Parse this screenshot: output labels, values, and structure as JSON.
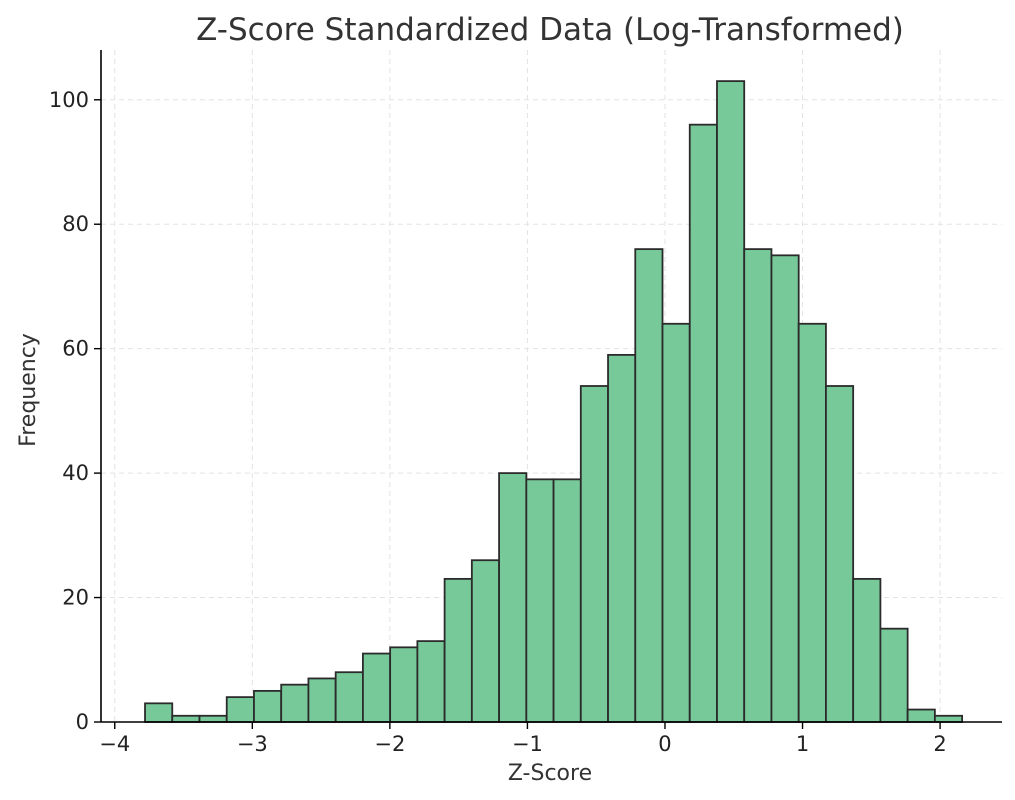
{
  "chart_data": {
    "type": "bar",
    "title": "Z-Score Standardized Data (Log-Transformed)",
    "xlabel": "Z-Score",
    "ylabel": "Frequency",
    "xlim": [
      -4.1,
      2.45
    ],
    "ylim": [
      0,
      108
    ],
    "x_ticks": [
      -4,
      -3,
      -2,
      -1,
      0,
      1,
      2
    ],
    "x_tick_labels": [
      "−4",
      "−3",
      "−2",
      "−1",
      "0",
      "1",
      "2"
    ],
    "y_ticks": [
      0,
      20,
      40,
      60,
      80,
      100
    ],
    "y_tick_labels": [
      "0",
      "20",
      "40",
      "60",
      "80",
      "100"
    ],
    "bin_start": -3.78,
    "bin_width": 0.198,
    "values": [
      3,
      1,
      1,
      4,
      5,
      6,
      7,
      8,
      11,
      12,
      13,
      23,
      26,
      40,
      39,
      39,
      54,
      59,
      76,
      64,
      96,
      103,
      76,
      75,
      64,
      54,
      23,
      15,
      2,
      1
    ],
    "bar_color": "#77c99a",
    "edge_color": "#2b2b2b",
    "grid": true,
    "legend": "none"
  }
}
